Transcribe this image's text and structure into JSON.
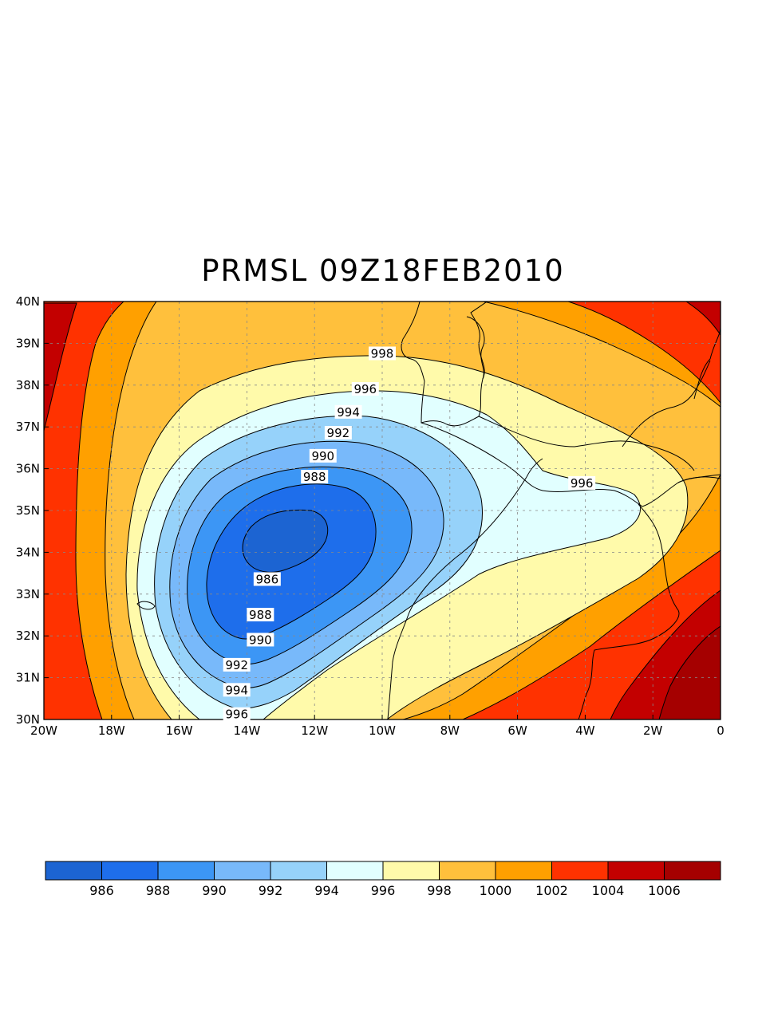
{
  "title": "PRMSL 09Z18FEB2010",
  "map": {
    "lon_range": [
      -20,
      0
    ],
    "lat_range": [
      30,
      40
    ],
    "grid": "dashed",
    "low_center": {
      "lon": -12.8,
      "lat": 34.3
    },
    "lon_ticks": [
      {
        "value": -20,
        "label": "20W"
      },
      {
        "value": -18,
        "label": "18W"
      },
      {
        "value": -16,
        "label": "16W"
      },
      {
        "value": -14,
        "label": "14W"
      },
      {
        "value": -12,
        "label": "12W"
      },
      {
        "value": -10,
        "label": "10W"
      },
      {
        "value": -8,
        "label": "8W"
      },
      {
        "value": -6,
        "label": "6W"
      },
      {
        "value": -4,
        "label": "4W"
      },
      {
        "value": -2,
        "label": "2W"
      },
      {
        "value": 0,
        "label": "0"
      }
    ],
    "lat_ticks": [
      {
        "value": 30,
        "label": "30N"
      },
      {
        "value": 31,
        "label": "31N"
      },
      {
        "value": 32,
        "label": "32N"
      },
      {
        "value": 33,
        "label": "33N"
      },
      {
        "value": 34,
        "label": "34N"
      },
      {
        "value": 35,
        "label": "35N"
      },
      {
        "value": 36,
        "label": "36N"
      },
      {
        "value": 37,
        "label": "37N"
      },
      {
        "value": 38,
        "label": "38N"
      },
      {
        "value": 39,
        "label": "39N"
      },
      {
        "value": 40,
        "label": "40N"
      }
    ],
    "contour_labels": [
      {
        "text": "998",
        "lon": -10.0,
        "lat": 38.75
      },
      {
        "text": "996",
        "lon": -10.5,
        "lat": 37.9
      },
      {
        "text": "994",
        "lon": -11.0,
        "lat": 37.35
      },
      {
        "text": "992",
        "lon": -11.3,
        "lat": 36.85
      },
      {
        "text": "990",
        "lon": -11.75,
        "lat": 36.3
      },
      {
        "text": "988",
        "lon": -12.0,
        "lat": 35.8
      },
      {
        "text": "996",
        "lon": -4.1,
        "lat": 35.65
      },
      {
        "text": "986",
        "lon": -13.4,
        "lat": 33.35
      },
      {
        "text": "988",
        "lon": -13.6,
        "lat": 32.5
      },
      {
        "text": "990",
        "lon": -13.6,
        "lat": 31.9
      },
      {
        "text": "992",
        "lon": -14.3,
        "lat": 31.3
      },
      {
        "text": "994",
        "lon": -14.3,
        "lat": 30.7
      },
      {
        "text": "996",
        "lon": -14.3,
        "lat": 30.12
      }
    ]
  },
  "colorbar": {
    "colors": [
      "#1c64d2",
      "#1e6eeb",
      "#3c96f5",
      "#78b9fa",
      "#96d2fa",
      "#e1ffff",
      "#fffaaa",
      "#ffc03c",
      "#ffa000",
      "#ff3200",
      "#c30000",
      "#a50000"
    ],
    "labels": [
      "986",
      "988",
      "990",
      "992",
      "994",
      "996",
      "998",
      "1000",
      "1002",
      "1004",
      "1006"
    ]
  }
}
